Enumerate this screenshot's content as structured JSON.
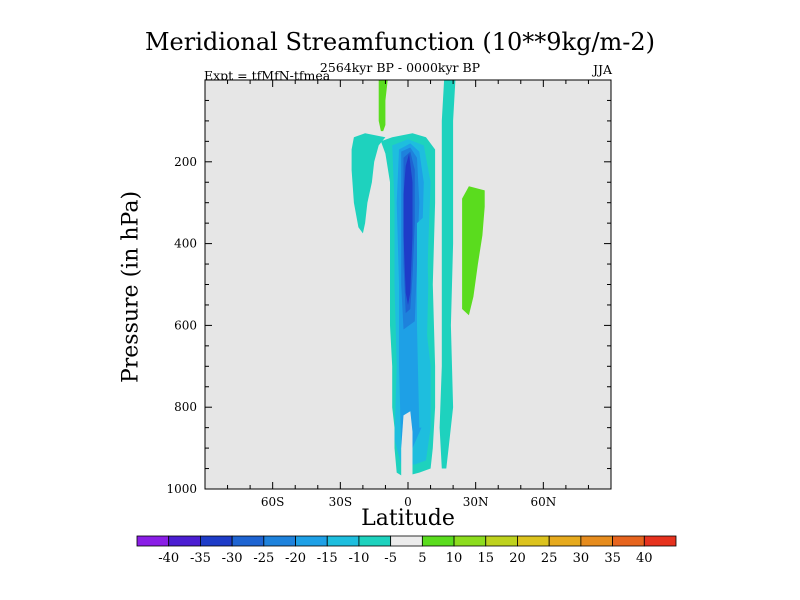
{
  "chart_data": {
    "type": "heatmap",
    "title": "Meridional Streamfunction (10**9kg/m-2)",
    "subtitle": "2564kyr BP - 0000kyr BP",
    "left_label": "Expt = tfMfN-tfmea",
    "right_label": "JJA",
    "xlabel": "Latitude",
    "ylabel": "Pressure (in hPa)",
    "xlim": [
      -90,
      90
    ],
    "ylim": [
      1000,
      0
    ],
    "x_ticks": [
      {
        "value": -60,
        "label": "60S"
      },
      {
        "value": -30,
        "label": "30S"
      },
      {
        "value": 0,
        "label": "0"
      },
      {
        "value": 30,
        "label": "30N"
      },
      {
        "value": 60,
        "label": "60N"
      }
    ],
    "y_ticks": [
      {
        "value": 200,
        "label": "200"
      },
      {
        "value": 400,
        "label": "400"
      },
      {
        "value": 600,
        "label": "600"
      },
      {
        "value": 800,
        "label": "800"
      },
      {
        "value": 1000,
        "label": "1000"
      }
    ],
    "colorbar": {
      "labels": [
        "-40",
        "-35",
        "-30",
        "-25",
        "-20",
        "-15",
        "-10",
        "-5",
        "5",
        "10",
        "15",
        "20",
        "25",
        "30",
        "35",
        "40"
      ],
      "colors": [
        "#8a1ee6",
        "#4b1ed2",
        "#1e3cc8",
        "#1e64d2",
        "#1e82dc",
        "#1ea0e6",
        "#1ebede",
        "#1ed2be",
        "#ececec",
        "#5adc1e",
        "#8cdc1e",
        "#bed21e",
        "#dcc31e",
        "#e6aa1e",
        "#e68c1e",
        "#e6641e",
        "#e6321e"
      ]
    },
    "missing_color": "#e6e6e6",
    "contours": [
      {
        "name": "sh-upper-cell",
        "level": -10,
        "color": "#1ed2be",
        "points": [
          [
            -19,
            130
          ],
          [
            -10,
            140
          ],
          [
            -13,
            160
          ],
          [
            -15,
            200
          ],
          [
            -16,
            250
          ],
          [
            -18,
            300
          ],
          [
            -19,
            350
          ],
          [
            -20,
            375
          ],
          [
            -22,
            360
          ],
          [
            -24,
            300
          ],
          [
            -25,
            220
          ],
          [
            -25,
            170
          ],
          [
            -24,
            140
          ]
        ]
      },
      {
        "name": "nh-upper-cell",
        "level": 10,
        "color": "#5adc1e",
        "points": [
          [
            24,
            290
          ],
          [
            27,
            260
          ],
          [
            34,
            270
          ],
          [
            34,
            310
          ],
          [
            33,
            380
          ],
          [
            31,
            450
          ],
          [
            29,
            530
          ],
          [
            27,
            575
          ],
          [
            24,
            560
          ],
          [
            24,
            450
          ],
          [
            24,
            350
          ]
        ]
      },
      {
        "name": "polar-strip-left",
        "level": 10,
        "color": "#5adc1e",
        "points": [
          [
            -13,
            0
          ],
          [
            -9,
            0
          ],
          [
            -10,
            50
          ],
          [
            -10,
            110
          ],
          [
            -11,
            125
          ],
          [
            -12,
            125
          ],
          [
            -13,
            100
          ],
          [
            -13,
            50
          ]
        ]
      },
      {
        "name": "polar-strip-right",
        "level": -10,
        "color": "#1ed2be",
        "points": [
          [
            16,
            0
          ],
          [
            21,
            0
          ],
          [
            20,
            100
          ],
          [
            20,
            200
          ],
          [
            20,
            400
          ],
          [
            19,
            600
          ],
          [
            20,
            800
          ],
          [
            18,
            900
          ],
          [
            17,
            950
          ],
          [
            15,
            950
          ],
          [
            14,
            850
          ],
          [
            15,
            700
          ],
          [
            15,
            500
          ],
          [
            15,
            300
          ],
          [
            15,
            100
          ]
        ]
      },
      {
        "name": "main-cell",
        "level": -10,
        "color": "#1ed2be",
        "points": [
          [
            -12,
            150
          ],
          [
            -7,
            140
          ],
          [
            2,
            130
          ],
          [
            8,
            140
          ],
          [
            12,
            170
          ],
          [
            12,
            300
          ],
          [
            11,
            500
          ],
          [
            12,
            700
          ],
          [
            12,
            800
          ],
          [
            11,
            900
          ],
          [
            10,
            950
          ],
          [
            5,
            960
          ],
          [
            -2,
            970
          ],
          [
            -5,
            960
          ],
          [
            -6,
            900
          ],
          [
            -6,
            850
          ],
          [
            -7,
            800
          ],
          [
            -7,
            700
          ],
          [
            -8,
            600
          ],
          [
            -8,
            400
          ],
          [
            -8,
            250
          ],
          [
            -10,
            180
          ]
        ]
      },
      {
        "name": "main-cell-inner-1",
        "level": -15,
        "color": "#1ebede",
        "points": [
          [
            -7,
            160
          ],
          [
            0,
            145
          ],
          [
            7,
            160
          ],
          [
            10,
            250
          ],
          [
            9,
            400
          ],
          [
            8,
            600
          ],
          [
            10,
            700
          ],
          [
            10,
            850
          ],
          [
            8,
            930
          ],
          [
            3,
            940
          ],
          [
            -3,
            940
          ],
          [
            -6,
            880
          ],
          [
            -5,
            700
          ],
          [
            -6,
            500
          ],
          [
            -6,
            300
          ]
        ]
      },
      {
        "name": "main-cell-inner-2",
        "level": -20,
        "color": "#1ea0e6",
        "points": [
          [
            -4,
            170
          ],
          [
            1,
            155
          ],
          [
            5,
            175
          ],
          [
            7,
            250
          ],
          [
            6,
            450
          ],
          [
            5,
            600
          ],
          [
            6,
            850
          ],
          [
            2,
            900
          ],
          [
            -3,
            900
          ],
          [
            -4,
            700
          ],
          [
            -4,
            500
          ],
          [
            -5,
            300
          ]
        ]
      },
      {
        "name": "main-cell-inner-3",
        "level": -25,
        "color": "#1e82dc",
        "points": [
          [
            -3,
            175
          ],
          [
            1,
            165
          ],
          [
            4,
            190
          ],
          [
            5,
            300
          ],
          [
            4,
            450
          ],
          [
            3,
            590
          ],
          [
            -2,
            610
          ],
          [
            -3,
            500
          ],
          [
            -3,
            350
          ]
        ]
      },
      {
        "name": "main-cell-inner-4",
        "level": -30,
        "color": "#1e64d2",
        "points": [
          [
            -2,
            190
          ],
          [
            1,
            175
          ],
          [
            3,
            220
          ],
          [
            3,
            350
          ],
          [
            2,
            480
          ],
          [
            1,
            560
          ],
          [
            -1,
            570
          ],
          [
            -2,
            450
          ],
          [
            -2,
            300
          ]
        ]
      },
      {
        "name": "main-cell-core",
        "level": -35,
        "color": "#1e3cc8",
        "points": [
          [
            -1,
            210
          ],
          [
            0.5,
            180
          ],
          [
            2,
            250
          ],
          [
            2,
            380
          ],
          [
            1,
            520
          ],
          [
            0,
            550
          ],
          [
            -1,
            520
          ],
          [
            -2,
            380
          ],
          [
            -2,
            280
          ]
        ]
      },
      {
        "name": "near-zero-gap",
        "level": 0,
        "color": "#e6e6e6",
        "points": [
          [
            -2,
            820
          ],
          [
            1,
            810
          ],
          [
            2,
            860
          ],
          [
            2,
            1000
          ],
          [
            -3,
            1000
          ],
          [
            -3,
            900
          ]
        ]
      },
      {
        "name": "nh-right-lobe",
        "level": -15,
        "color": "#1ebede",
        "points": [
          [
            4,
            350
          ],
          [
            8,
            330
          ],
          [
            9,
            500
          ],
          [
            8,
            750
          ],
          [
            7,
            850
          ],
          [
            5,
            850
          ],
          [
            4,
            600
          ]
        ]
      }
    ]
  }
}
